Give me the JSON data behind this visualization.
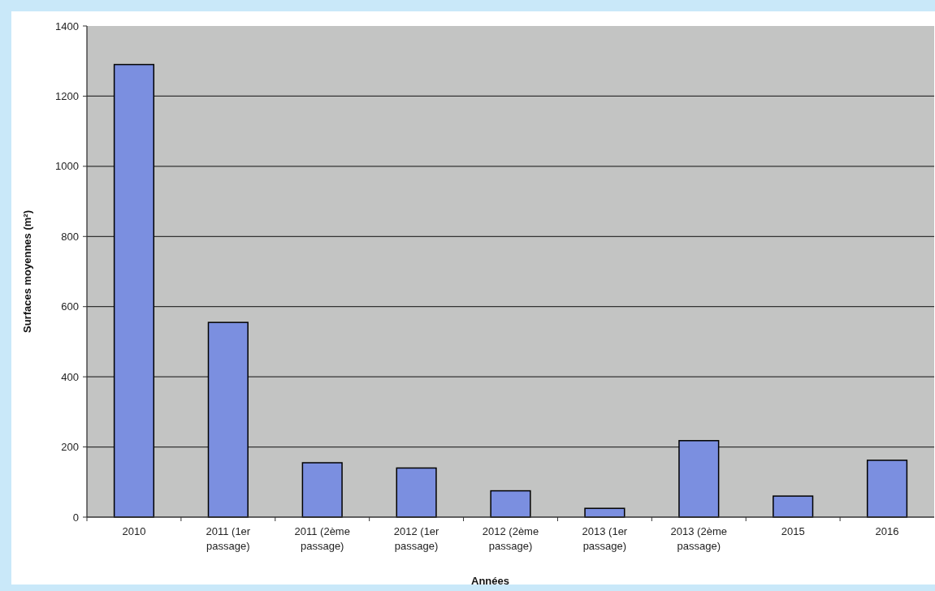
{
  "chart_data": {
    "type": "bar",
    "xlabel": "Années",
    "ylabel": "Surfaces moyennes (m²)",
    "categories": [
      "2010",
      "2011 (1er passage)",
      "2011 (2ème passage)",
      "2012 (1er passage)",
      "2012 (2ème passage)",
      "2013 (1er passage)",
      "2013 (2ème passage)",
      "2015",
      "2016"
    ],
    "values": [
      1290,
      555,
      155,
      140,
      75,
      25,
      218,
      60,
      162
    ],
    "color": "#7b8fe0",
    "ylim": [
      0,
      1400
    ],
    "yticks": [
      0,
      200,
      400,
      600,
      800,
      1000,
      1200,
      1400
    ],
    "grid": "y"
  }
}
